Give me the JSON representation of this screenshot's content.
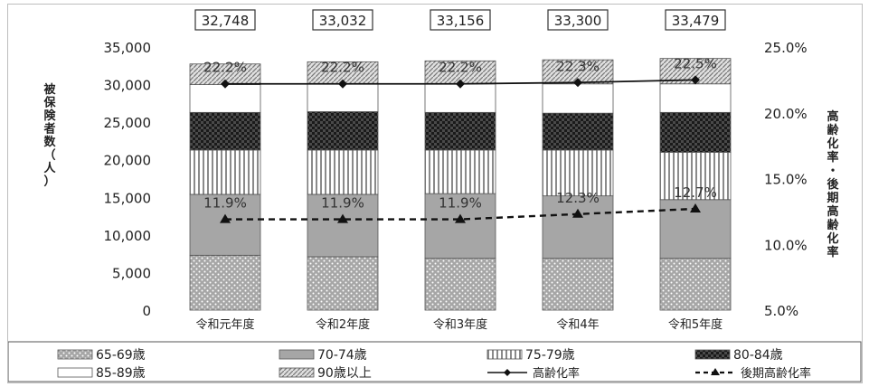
{
  "chart_data": {
    "type": "bar",
    "stacked": true,
    "categories": [
      "令和元年度",
      "令和2年度",
      "令和3年度",
      "令和4年",
      "令和5年度"
    ],
    "totals": [
      "32,748",
      "33,032",
      "33,156",
      "33,300",
      "33,479"
    ],
    "series": [
      {
        "name": "65-69歳",
        "values": [
          7300,
          7100,
          6900,
          6900,
          6900
        ],
        "color": "#a6a6a6",
        "pattern": "dots"
      },
      {
        "name": "70-74歳",
        "values": [
          8100,
          8300,
          8600,
          8300,
          7800
        ],
        "color": "#a6a6a6",
        "pattern": "solid"
      },
      {
        "name": "75-79歳",
        "values": [
          5900,
          5900,
          5800,
          6100,
          6300
        ],
        "color": "#ffffff",
        "pattern": "vlines"
      },
      {
        "name": "80-84歳",
        "values": [
          5000,
          5100,
          5000,
          4900,
          5300
        ],
        "color": "#1a1a1a",
        "pattern": "checker"
      },
      {
        "name": "85-89歳",
        "values": [
          3700,
          3700,
          3800,
          3900,
          3800
        ],
        "color": "#ffffff",
        "pattern": "solid"
      },
      {
        "name": "90歳以上",
        "values": [
          2748,
          2932,
          3056,
          3200,
          3379
        ],
        "color": "#ffffff",
        "pattern": "diag"
      }
    ],
    "lines": [
      {
        "name": "高齢化率",
        "values": [
          22.2,
          22.2,
          22.2,
          22.3,
          22.5
        ],
        "labels": [
          "22.2%",
          "22.2%",
          "22.2%",
          "22.3%",
          "22.5%"
        ],
        "style": "solid",
        "marker": "diamond"
      },
      {
        "name": "後期高齢化率",
        "values": [
          11.9,
          11.9,
          11.9,
          12.3,
          12.7
        ],
        "labels": [
          "11.9%",
          "11.9%",
          "11.9%",
          "12.3%",
          "12.7%"
        ],
        "style": "dashed",
        "marker": "triangle"
      }
    ],
    "y_left": {
      "min": 0,
      "max": 35000,
      "ticks": [
        "0",
        "5,000",
        "10,000",
        "15,000",
        "20,000",
        "25,000",
        "30,000",
        "35,000"
      ],
      "label": "被保険者数（人）"
    },
    "y_right": {
      "min": 5.0,
      "max": 25.0,
      "ticks": [
        "5.0%",
        "10.0%",
        "15.0%",
        "20.0%",
        "25.0%"
      ],
      "label": "高齢化率・後期高齢化率"
    },
    "grid": false,
    "legend_position": "bottom"
  }
}
